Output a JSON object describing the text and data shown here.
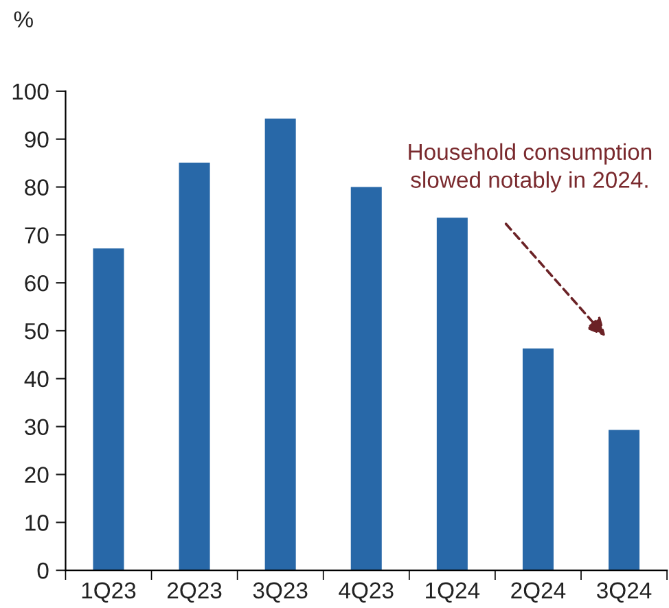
{
  "chart_data": {
    "type": "bar",
    "ylabel": "%",
    "categories": [
      "1Q23",
      "2Q23",
      "3Q23",
      "4Q23",
      "1Q24",
      "2Q24",
      "3Q24"
    ],
    "values": [
      67.2,
      85.1,
      94.3,
      80.0,
      73.6,
      46.3,
      29.3
    ],
    "color": "#2868a8",
    "ylim": [
      0,
      100
    ],
    "yticks": [
      0,
      10,
      20,
      30,
      40,
      50,
      60,
      70,
      80,
      90,
      100
    ],
    "grid": false,
    "legend": false,
    "annotations": [
      "Household consumption slowed notably in 2024."
    ]
  }
}
